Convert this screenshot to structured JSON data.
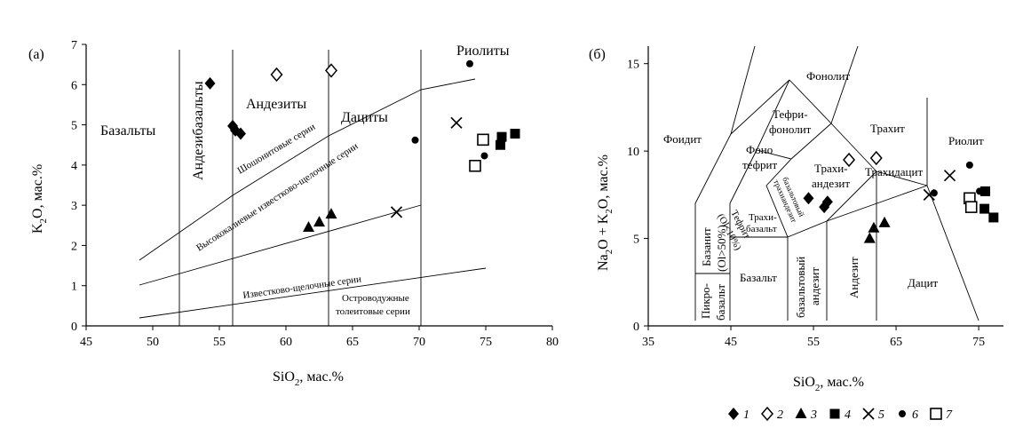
{
  "chart_data": [
    {
      "type": "scatter",
      "panel": "(а)",
      "xlabel_main": "SiO",
      "xlabel_sub": "2",
      "xlabel_rest": ", мас.%",
      "ylabel_main": "K",
      "ylabel_sub": "2",
      "ylabel_rest": "O, мас.%",
      "xlim": [
        45,
        80
      ],
      "ylim": [
        0,
        7
      ],
      "xticks": [
        45,
        50,
        55,
        60,
        65,
        70,
        75,
        80
      ],
      "yticks": [
        0,
        1,
        2,
        3,
        4,
        5,
        6,
        7
      ],
      "field_labels": {
        "basalts": "Базальты",
        "andesibasalts": "Андезибазальты",
        "andesites": "Андезиты",
        "dacites": "Дациты",
        "rhyolites": "Риолиты",
        "shoshonite": "Шошонитовые серии",
        "high_k": "Высококалиевые известково-щелочные серии",
        "calc_alkaline": "Известково-щелочные серии",
        "island_arc_1": "Островодужные",
        "island_arc_2": "толеитовые серии"
      },
      "series": [
        {
          "name": "1",
          "marker": "diamond-filled",
          "points": [
            [
              54.3,
              6.03
            ],
            [
              56.0,
              4.97
            ],
            [
              56.2,
              4.86
            ],
            [
              56.6,
              4.78
            ]
          ]
        },
        {
          "name": "2",
          "marker": "diamond-open",
          "points": [
            [
              59.3,
              6.25
            ],
            [
              63.4,
              6.35
            ]
          ]
        },
        {
          "name": "3",
          "marker": "triangle-filled",
          "points": [
            [
              61.7,
              2.45
            ],
            [
              62.5,
              2.58
            ],
            [
              63.4,
              2.78
            ]
          ]
        },
        {
          "name": "4",
          "marker": "square-filled",
          "points": [
            [
              76.1,
              4.5
            ],
            [
              76.2,
              4.7
            ],
            [
              77.2,
              4.78
            ]
          ]
        },
        {
          "name": "5",
          "marker": "cross",
          "points": [
            [
              68.3,
              2.83
            ],
            [
              72.8,
              5.05
            ]
          ]
        },
        {
          "name": "6",
          "marker": "dot",
          "points": [
            [
              73.8,
              6.52
            ],
            [
              69.7,
              4.62
            ],
            [
              74.9,
              4.23
            ]
          ]
        },
        {
          "name": "7",
          "marker": "square-open",
          "points": [
            [
              74.2,
              3.98
            ],
            [
              74.8,
              4.63
            ]
          ]
        }
      ]
    },
    {
      "type": "scatter",
      "panel": "(б)",
      "xlabel_main": "SiO",
      "xlabel_sub": "2",
      "xlabel_rest": ", мас.%",
      "ylabel_parts": [
        "Na",
        "2",
        "O + K",
        "2",
        "O, мас.%"
      ],
      "xlim": [
        35,
        78
      ],
      "ylim": [
        0,
        16
      ],
      "xticks": [
        35,
        45,
        55,
        65,
        75
      ],
      "yticks": [
        0,
        5,
        10,
        15
      ],
      "field_labels": {
        "foidite": "Фоидит",
        "phonolite": "Фонолит",
        "tephriphonolite_1": "Тефри-",
        "tephriphonolite_2": "фонолит",
        "phonotephrite_1": "Фоно",
        "phonotephrite_2": "тефрит",
        "trachyte": "Трахит",
        "trachyandesite_1": "Трахи-",
        "trachyandesite_2": "андезит",
        "trachydacite": "Трахидацит",
        "rhyolite": "Риолит",
        "tephrite_1": "Тефрит",
        "tephrite_2": "(Ol<10%)",
        "basaltic_trachyandesite_1": "базальтовый",
        "basaltic_trachyandesite_2": "трахиандезит",
        "trachybasalt_1": "Трахи-",
        "trachybasalt_2": "базальт",
        "basanite_1": "Базанит",
        "basanite_2": "(Ol>50%)",
        "picrobasalt_1": "Пикро-",
        "picrobasalt_2": "базальт",
        "basalt": "Базальт",
        "basaltic_andesite_1": "базальтовый",
        "basaltic_andesite_2": "андезит",
        "andesite": "Андезит",
        "dacite": "Дацит"
      },
      "series": [
        {
          "name": "1",
          "marker": "diamond-filled",
          "points": [
            [
              54.4,
              7.3
            ],
            [
              56.3,
              6.8
            ],
            [
              56.7,
              7.1
            ]
          ]
        },
        {
          "name": "2",
          "marker": "diamond-open",
          "points": [
            [
              59.3,
              9.5
            ],
            [
              62.6,
              9.6
            ]
          ]
        },
        {
          "name": "3",
          "marker": "triangle-filled",
          "points": [
            [
              61.8,
              5.0
            ],
            [
              62.3,
              5.6
            ],
            [
              63.6,
              5.9
            ]
          ]
        },
        {
          "name": "4",
          "marker": "square-filled",
          "points": [
            [
              75.8,
              7.7
            ],
            [
              75.7,
              6.7
            ],
            [
              76.8,
              6.2
            ]
          ]
        },
        {
          "name": "5",
          "marker": "cross",
          "points": [
            [
              69.0,
              7.5
            ],
            [
              71.5,
              8.6
            ]
          ]
        },
        {
          "name": "6",
          "marker": "dot",
          "points": [
            [
              69.6,
              7.6
            ],
            [
              73.9,
              9.2
            ],
            [
              75.1,
              7.7
            ]
          ]
        },
        {
          "name": "7",
          "marker": "square-open",
          "points": [
            [
              73.9,
              7.3
            ],
            [
              74.1,
              6.8
            ]
          ]
        }
      ]
    }
  ],
  "legend": {
    "items": [
      {
        "marker": "diamond-filled",
        "label": "1"
      },
      {
        "marker": "diamond-open",
        "label": "2"
      },
      {
        "marker": "triangle-filled",
        "label": "3"
      },
      {
        "marker": "square-filled",
        "label": "4"
      },
      {
        "marker": "cross",
        "label": "5"
      },
      {
        "marker": "dot",
        "label": "6"
      },
      {
        "marker": "square-open",
        "label": "7"
      }
    ]
  }
}
